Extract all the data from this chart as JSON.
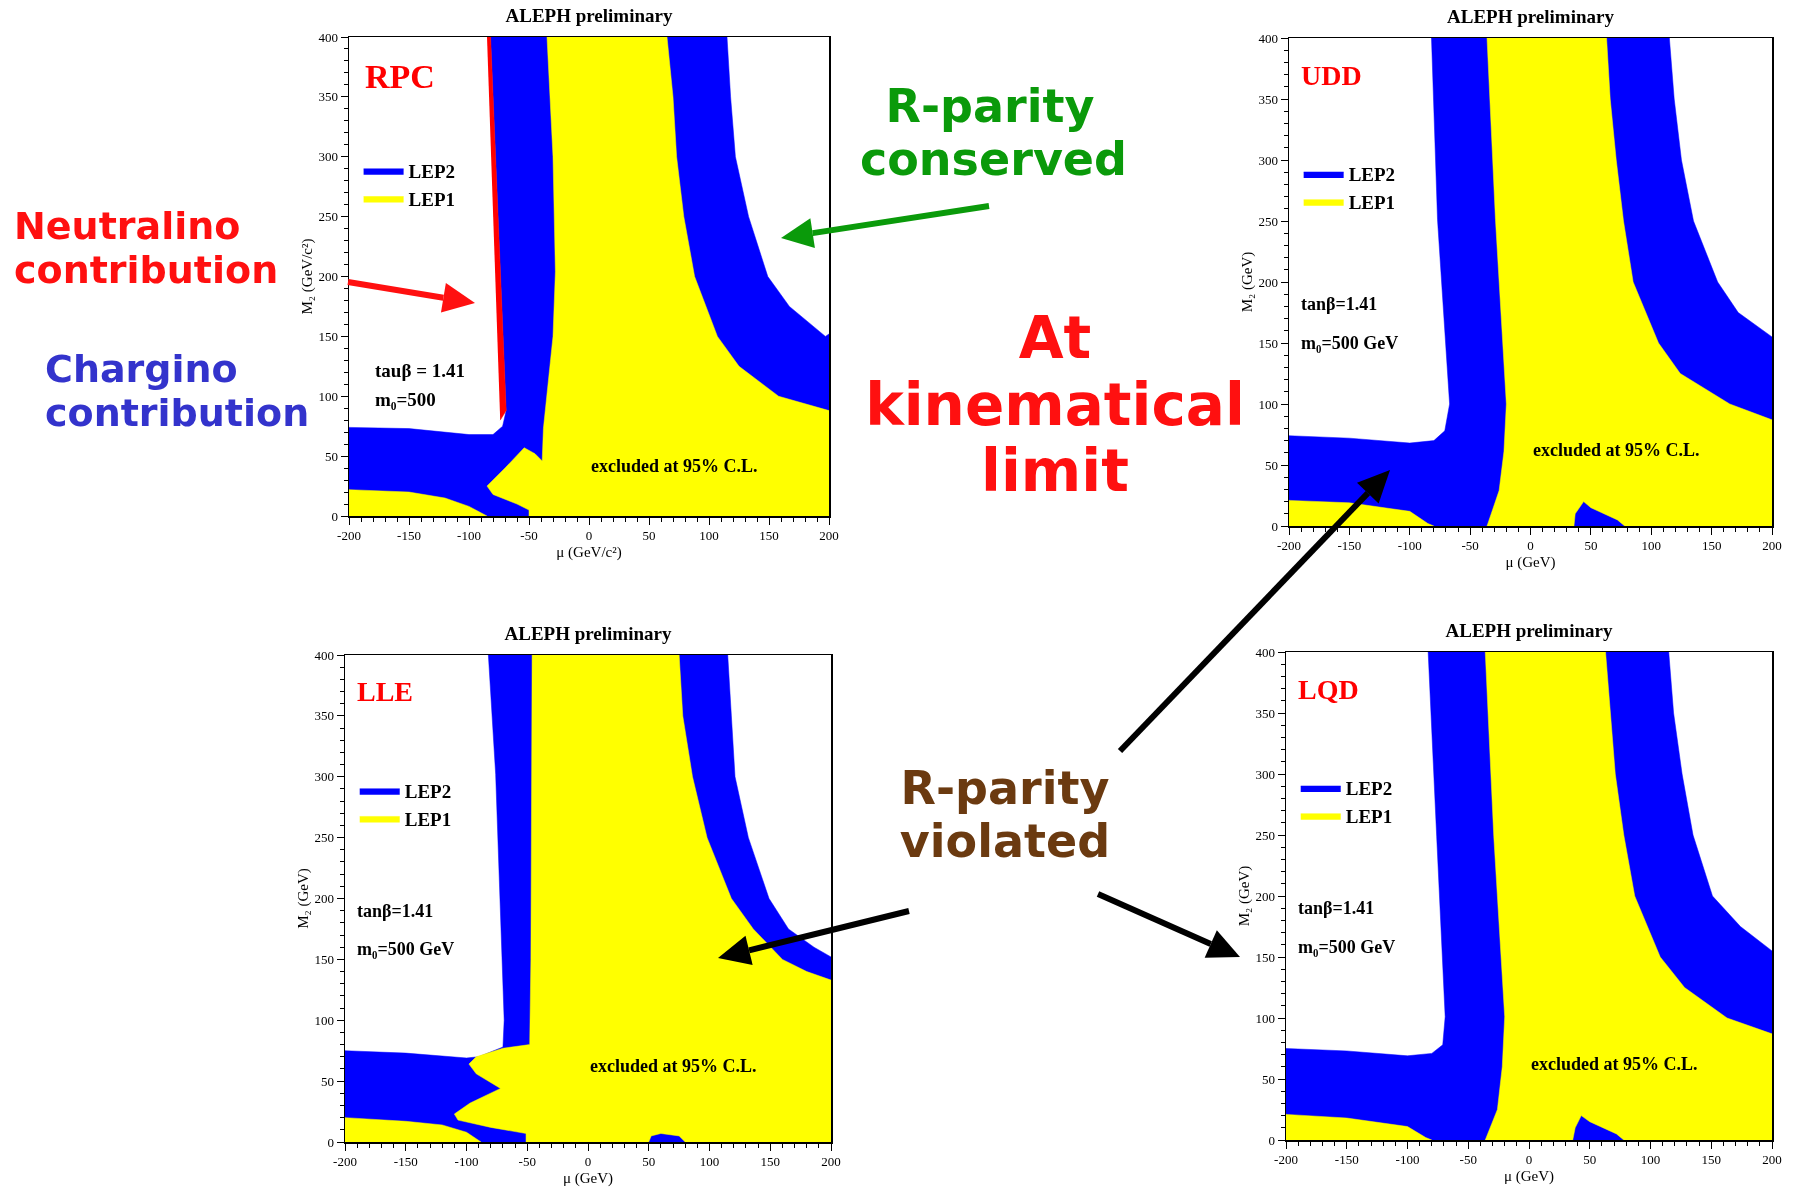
{
  "chart_data": [
    {
      "type": "area",
      "title": "ALEPH preliminary",
      "xlabel": "μ (GeV/c²)",
      "ylabel": "M₂ (GeV/c²)",
      "xlim": [
        -200,
        200
      ],
      "ylim": [
        0,
        400
      ],
      "xticks": [
        -200,
        -150,
        -100,
        -50,
        0,
        50,
        100,
        150,
        200
      ],
      "yticks": [
        0,
        50,
        100,
        150,
        200,
        250,
        300,
        350,
        400
      ],
      "legend": "left",
      "annotations": [
        "RPC",
        "tauβ = 1.41",
        "m₀=500",
        "excluded at 95% C.L."
      ],
      "series": [
        {
          "name": "LEP2",
          "color": "#0000ff",
          "x": [
            -200,
            -200,
            -150,
            -100,
            -80,
            -72,
            -69,
            -82,
            115,
            118,
            122,
            133,
            149,
            167,
            197,
            200,
            200
          ],
          "values": [
            0,
            74,
            73,
            68,
            68,
            75,
            88,
            400,
            400,
            350,
            300,
            250,
            200,
            175,
            150,
            152,
            0
          ]
        },
        {
          "name": "LEP1",
          "color": "#ffff00",
          "x": [
            -35,
            65,
            70,
            73,
            79,
            88,
            107,
            125,
            158,
            200,
            200,
            -50,
            -50,
            -60,
            -80,
            -85,
            -70,
            -54,
            -45,
            -39,
            -38,
            -30,
            -28,
            -30,
            -35,
            null,
            -200,
            -200,
            -150,
            -120,
            -100,
            -85
          ],
          "values": [
            400,
            400,
            350,
            300,
            250,
            200,
            150,
            125,
            100,
            88,
            0,
            0,
            5,
            10,
            18,
            25,
            40,
            57,
            52,
            46,
            73,
            150,
            204,
            300,
            400,
            null,
            0,
            22,
            20,
            15,
            8,
            0
          ]
        },
        {
          "color": "#ff0000",
          "x": [
            -85,
            -82,
            -69,
            -74
          ],
          "values": [
            400,
            400,
            88,
            80
          ]
        }
      ]
    },
    {
      "type": "area",
      "title": "ALEPH preliminary",
      "xlabel": "μ (GeV)",
      "ylabel": "M₂ (GeV)",
      "xlim": [
        -200,
        200
      ],
      "ylim": [
        0,
        400
      ],
      "xticks": [
        -200,
        -150,
        -100,
        -50,
        0,
        50,
        100,
        150,
        200
      ],
      "yticks": [
        0,
        50,
        100,
        150,
        200,
        250,
        300,
        350,
        400
      ],
      "legend": "left",
      "annotations": [
        "UDD",
        "tanβ=1.41",
        "m₀=500 GeV",
        "excluded at 95% C.L."
      ],
      "series": [
        {
          "name": "LEP2",
          "color": "#0000ff",
          "x": [
            -200,
            -200,
            -150,
            -100,
            -80,
            -71,
            -67,
            -77,
            -82,
            115,
            119,
            125,
            135,
            155,
            172,
            200,
            200
          ],
          "values": [
            0,
            74,
            72,
            68,
            70,
            78,
            100,
            251,
            400,
            400,
            350,
            300,
            250,
            200,
            175,
            155,
            0
          ]
        },
        {
          "name": "LEP1",
          "color": "#ffff00",
          "x": [
            -36,
            63,
            66,
            71,
            77,
            85,
            106,
            124,
            165,
            200,
            200,
            78,
            72,
            50,
            44,
            37,
            36,
            -36,
            -26,
            -22,
            -20,
            -29,
            -36,
            null,
            -200,
            -200,
            -150,
            -100,
            -85,
            -80
          ],
          "values": [
            400,
            400,
            350,
            300,
            250,
            200,
            150,
            125,
            100,
            87,
            0,
            0,
            5,
            15,
            20,
            10,
            0,
            0,
            29,
            61,
            100,
            251,
            400,
            null,
            0,
            21,
            19,
            12,
            2,
            0
          ]
        }
      ]
    },
    {
      "type": "area",
      "title": "ALEPH preliminary",
      "xlabel": "μ (GeV)",
      "ylabel": "M₂ (GeV)",
      "xlim": [
        -200,
        200
      ],
      "ylim": [
        0,
        400
      ],
      "xticks": [
        -200,
        -150,
        -100,
        -50,
        0,
        50,
        100,
        150,
        200
      ],
      "yticks": [
        0,
        50,
        100,
        150,
        200,
        250,
        300,
        350,
        400
      ],
      "legend": "left",
      "annotations": [
        "LLE",
        "tanβ=1.41",
        "m₀=500 GeV",
        "excluded at 95% C.L."
      ],
      "series": [
        {
          "name": "LEP2",
          "color": "#0000ff",
          "x": [
            -200,
            -200,
            -150,
            -100,
            -90,
            -70,
            -69,
            -76,
            -82,
            115,
            118,
            121,
            132,
            149,
            165,
            186,
            200,
            200
          ],
          "values": [
            0,
            75,
            73,
            69,
            70,
            78,
            100,
            302,
            400,
            400,
            350,
            300,
            250,
            200,
            175,
            160,
            152,
            0
          ]
        },
        {
          "name": "LEP1",
          "color": "#ffff00",
          "x": [
            -46,
            75,
            78,
            86,
            98,
            118,
            136,
            160,
            180,
            200,
            200,
            80,
            75,
            60,
            52,
            50,
            -51,
            -51,
            -80,
            -107,
            -110,
            -97,
            -72,
            -92,
            -98,
            -92,
            -70,
            -48,
            -47,
            -46,
            null,
            -200,
            -200,
            -150,
            -120,
            -100,
            -88
          ],
          "values": [
            400,
            400,
            350,
            300,
            250,
            200,
            175,
            150,
            140,
            133,
            0,
            0,
            5,
            7,
            5,
            0,
            0,
            7,
            12,
            18,
            23,
            32,
            44,
            56,
            64,
            70,
            77,
            80,
            150,
            400,
            null,
            0,
            20,
            17,
            14,
            8,
            0
          ]
        }
      ]
    },
    {
      "type": "area",
      "title": "ALEPH preliminary",
      "xlabel": "μ (GeV)",
      "ylabel": "M₂ (GeV)",
      "xlim": [
        -200,
        200
      ],
      "ylim": [
        0,
        400
      ],
      "xticks": [
        -200,
        -150,
        -100,
        -50,
        0,
        50,
        100,
        150,
        200
      ],
      "yticks": [
        0,
        50,
        100,
        150,
        200,
        250,
        300,
        350,
        400
      ],
      "legend": "left",
      "annotations": [
        "LQD",
        "tanβ=1.41",
        "m₀=500 GeV",
        "excluded at 95% C.L."
      ],
      "series": [
        {
          "name": "LEP2",
          "color": "#0000ff",
          "x": [
            -200,
            -200,
            -150,
            -100,
            -80,
            -71,
            -69,
            -76,
            -83,
            115,
            119,
            126,
            135,
            151,
            174,
            200,
            200
          ],
          "values": [
            0,
            75,
            73,
            69,
            71,
            78,
            101,
            249,
            400,
            400,
            350,
            300,
            250,
            200,
            175,
            155,
            0
          ]
        },
        {
          "name": "LEP1",
          "color": "#ffff00",
          "x": [
            -36,
            63,
            67,
            71,
            78,
            87,
            108,
            128,
            163,
            200,
            200,
            78,
            72,
            50,
            43,
            38,
            36,
            -36,
            -26,
            -22,
            -20,
            -29,
            -36,
            null,
            -200,
            -200,
            -150,
            -100,
            -85,
            -80
          ],
          "values": [
            400,
            400,
            350,
            300,
            250,
            200,
            150,
            125,
            100,
            87,
            0,
            0,
            5,
            15,
            20,
            10,
            0,
            0,
            25,
            60,
            101,
            249,
            400,
            null,
            0,
            21,
            18,
            11,
            2,
            0
          ]
        }
      ]
    },
    {
      "type": "other",
      "annotations": [
        "R-parity\nconserved",
        "Neutralino\ncontribution",
        "Chargino\ncontribution",
        "At\nkinematical\nlimit",
        "R-parity\nviolated"
      ]
    }
  ]
}
